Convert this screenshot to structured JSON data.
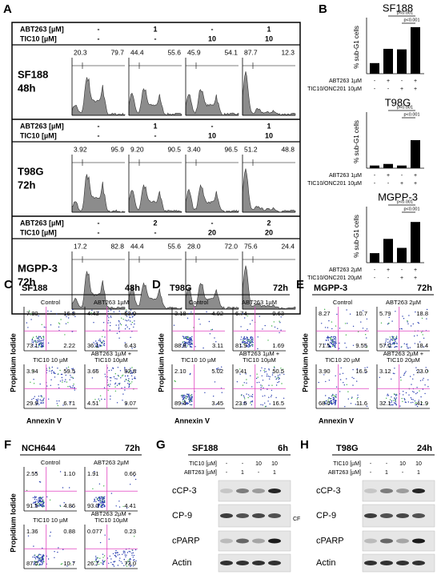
{
  "panel_a": {
    "letter": "A",
    "blocks": [
      {
        "rows": [
          {
            "label": "ABT263 [µM]",
            "values": [
              "-",
              "1",
              "-",
              "1"
            ]
          },
          {
            "label": "TIC10 [µM]",
            "values": [
              "-",
              "-",
              "10",
              "10"
            ]
          }
        ],
        "cell": "SF188",
        "time": "48h",
        "histograms": [
          [
            "20.3",
            "79.7"
          ],
          [
            "44.4",
            "55.6"
          ],
          [
            "45.9",
            "54.1"
          ],
          [
            "87.7",
            "12.3"
          ]
        ]
      },
      {
        "rows": [
          {
            "label": "ABT263 [µM]",
            "values": [
              "-",
              "1",
              "-",
              "1"
            ]
          },
          {
            "label": "TIC10 [µM]",
            "values": [
              "-",
              "-",
              "10",
              "10"
            ]
          }
        ],
        "cell": "T98G",
        "time": "72h",
        "histograms": [
          [
            "3.92",
            "95.9"
          ],
          [
            "9.20",
            "90.5"
          ],
          [
            "3.40",
            "96.5"
          ],
          [
            "51.2",
            "48.8"
          ]
        ]
      },
      {
        "rows": [
          {
            "label": "ABT263 [µM]",
            "values": [
              "-",
              "2",
              "-",
              "2"
            ]
          },
          {
            "label": "TIC10 [µM]",
            "values": [
              "-",
              "-",
              "20",
              "20"
            ]
          }
        ],
        "cell": "MGPP-3",
        "time": "72h",
        "histograms": [
          [
            "17.2",
            "82.8"
          ],
          [
            "44.4",
            "55.6"
          ],
          [
            "28.0",
            "72.0"
          ],
          [
            "75.6",
            "24.4"
          ]
        ]
      }
    ]
  },
  "panel_b": {
    "letter": "B",
    "charts": [
      {
        "type": "bar",
        "title": "SF188",
        "y_label": "% sub-G1 cells",
        "values": [
          20,
          47,
          46,
          88
        ],
        "ylim": [
          0,
          100
        ],
        "color": "#000000",
        "p_values": [
          "p<0.001",
          "p<0.001"
        ],
        "rows": [
          {
            "label": "ABT263 1µM",
            "values": [
              "-",
              "+",
              "-",
              "+"
            ]
          },
          {
            "label": "TIC10/ONC201 10µM",
            "values": [
              "-",
              "-",
              "+",
              "+"
            ]
          }
        ]
      },
      {
        "type": "bar",
        "title": "T98G",
        "y_label": "% sub-G1 cells",
        "values": [
          5,
          8,
          5,
          53
        ],
        "ylim": [
          0,
          100
        ],
        "color": "#000000",
        "p_values": [
          "p<0.001",
          "p<0.001"
        ],
        "rows": [
          {
            "label": "ABT263 1µM",
            "values": [
              "-",
              "+",
              "-",
              "+"
            ]
          },
          {
            "label": "TIC10/ONC201 10µM",
            "values": [
              "-",
              "-",
              "+",
              "+"
            ]
          }
        ]
      },
      {
        "type": "bar",
        "title": "MGPP-3",
        "y_label": "% sub-G1 cells",
        "values": [
          18,
          45,
          28,
          77
        ],
        "ylim": [
          0,
          100
        ],
        "color": "#000000",
        "p_values": [
          "p<0.001",
          "p<0.001"
        ],
        "rows": [
          {
            "label": "ABT263 2µM",
            "values": [
              "-",
              "+",
              "-",
              "+"
            ]
          },
          {
            "label": "TIC10/ONC201 20µM",
            "values": [
              "-",
              "-",
              "+",
              "+"
            ]
          }
        ]
      }
    ]
  },
  "panels_dot": [
    {
      "letter": "C",
      "cell": "SF188",
      "time": "48h",
      "y_label": "Propidium Iodide",
      "x_label": "Annexin V",
      "plots": [
        {
          "label": [
            "Control"
          ],
          "quadrants": [
            "7.80",
            "16.8",
            "73.1",
            "2.22"
          ]
        },
        {
          "label": [
            "ABT263 1µM"
          ],
          "quadrants": [
            "4.43",
            "53.0",
            "36.1",
            "6.43"
          ]
        },
        {
          "label": [
            "TIC10 10 µM"
          ],
          "quadrants": [
            "3.94",
            "59.5",
            "29.9",
            "6.71"
          ]
        },
        {
          "label": [
            "ABT263 1µM +",
            "TIC10 10µM"
          ],
          "quadrants": [
            "3.66",
            "82.8",
            "4.51",
            "9.07"
          ]
        }
      ]
    },
    {
      "letter": "D",
      "cell": "T98G",
      "time": "72h",
      "y_label": "Propidium Iodide",
      "x_label": "Annexin V",
      "plots": [
        {
          "label": [
            "Control"
          ],
          "quadrants": [
            "3.18",
            "4.92",
            "88.8",
            "3.11"
          ]
        },
        {
          "label": [
            "ABT263 1µM"
          ],
          "quadrants": [
            "6.74",
            "9.63",
            "81.9",
            "1.69"
          ]
        },
        {
          "label": [
            "TIC10 10 µM"
          ],
          "quadrants": [
            "2.10",
            "5.02",
            "89.4",
            "3.45"
          ]
        },
        {
          "label": [
            "ABT263 1µM +",
            "TIC10 10µM"
          ],
          "quadrants": [
            "9.41",
            "50.5",
            "23.6",
            "16.5"
          ]
        }
      ]
    },
    {
      "letter": "E",
      "cell": "MGPP-3",
      "time": "72h",
      "y_label": "Propidium Iodide",
      "x_label": "Annexin V",
      "plots": [
        {
          "label": [
            "Control"
          ],
          "quadrants": [
            "8.27",
            "10.7",
            "71.5",
            "9.55"
          ]
        },
        {
          "label": [
            "ABT263 2µM"
          ],
          "quadrants": [
            "5.79",
            "18.8",
            "57.0",
            "18.4"
          ]
        },
        {
          "label": [
            "TIC10 20 µM"
          ],
          "quadrants": [
            "3.90",
            "16.5",
            "68.0",
            "11.6"
          ]
        },
        {
          "label": [
            "ABT263 2µM +",
            "TIC10 20µM"
          ],
          "quadrants": [
            "3.12",
            "23.0",
            "32.1",
            "41.9"
          ]
        }
      ]
    },
    {
      "letter": "F",
      "cell": "NCH644",
      "time": "72h",
      "y_label": "Propidium Iodide",
      "x_label": "Annexin V",
      "plots": [
        {
          "label": [
            "Control"
          ],
          "quadrants": [
            "2.55",
            "1.10",
            "91.5",
            "4.86"
          ]
        },
        {
          "label": [
            "ABT263 2µM"
          ],
          "quadrants": [
            "1.91",
            "0.66",
            "93.0",
            "4.41"
          ]
        },
        {
          "label": [
            "TIC10 10 µM"
          ],
          "quadrants": [
            "1.36",
            "0.88",
            "87.0",
            "10.7"
          ]
        },
        {
          "label": [
            "ABT263 2µM +",
            "TIC10 10µM"
          ],
          "quadrants": [
            "0.077",
            "0.23",
            "26.7",
            "73.0"
          ]
        }
      ]
    }
  ],
  "panels_blot": [
    {
      "letter": "G",
      "cell": "SF188",
      "time": "6h",
      "rows": [
        {
          "label": "TIC10 [µM]",
          "values": [
            "-",
            "-",
            "10",
            "10"
          ]
        },
        {
          "label": "ABT263 [µM]",
          "values": [
            "-",
            "1",
            "-",
            "1"
          ]
        }
      ],
      "bands": [
        "cCP-3",
        "CP-9",
        "cPARP",
        "Actin"
      ],
      "note": "CF"
    },
    {
      "letter": "H",
      "cell": "T98G",
      "time": "24h",
      "rows": [
        {
          "label": "TIC10 [µM]",
          "values": [
            "-",
            "-",
            "10",
            "10"
          ]
        },
        {
          "label": "ABT263 [µM]",
          "values": [
            "-",
            "1",
            "-",
            "1"
          ]
        }
      ],
      "bands": [
        "cCP-3",
        "CP-9",
        "cPARP",
        "Actin"
      ]
    }
  ]
}
